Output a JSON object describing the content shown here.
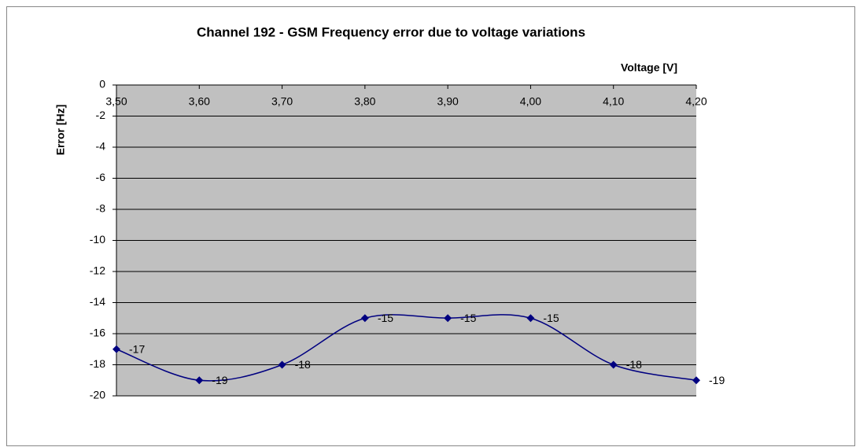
{
  "chart_data": {
    "type": "line",
    "title": "Channel 192 - GSM Frequency error due to voltage variations",
    "x_label": "Voltage [V]",
    "y_label": "Error [Hz]",
    "categories": [
      "3,50",
      "3,60",
      "3,70",
      "3,80",
      "3,90",
      "4,00",
      "4,10",
      "4,20"
    ],
    "series": [
      {
        "name": "Error",
        "color": "#000080",
        "values": [
          -17,
          -19,
          -18,
          -15,
          -15,
          -15,
          -18,
          -19
        ]
      }
    ],
    "ylim": [
      -20,
      0
    ],
    "yticks": [
      0,
      -2,
      -4,
      -6,
      -8,
      -10,
      -12,
      -14,
      -16,
      -18,
      -20
    ],
    "grid": true,
    "smooth": true,
    "plot_color": "#c0c0c0"
  }
}
